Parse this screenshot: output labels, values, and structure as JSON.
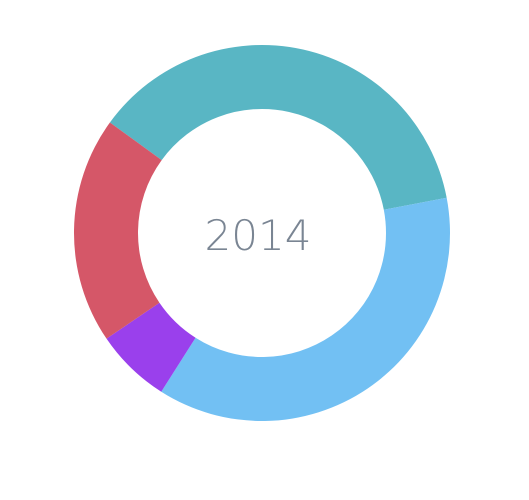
{
  "chart_data": {
    "type": "pie",
    "center_label": "2014",
    "slices": [
      {
        "value": 37.0,
        "color": "#59b6c4"
      },
      {
        "value": 37.0,
        "color": "#72c0f3"
      },
      {
        "value": 6.5,
        "color": "#9a40ec"
      },
      {
        "value": 19.5,
        "color": "#d55768"
      }
    ]
  }
}
